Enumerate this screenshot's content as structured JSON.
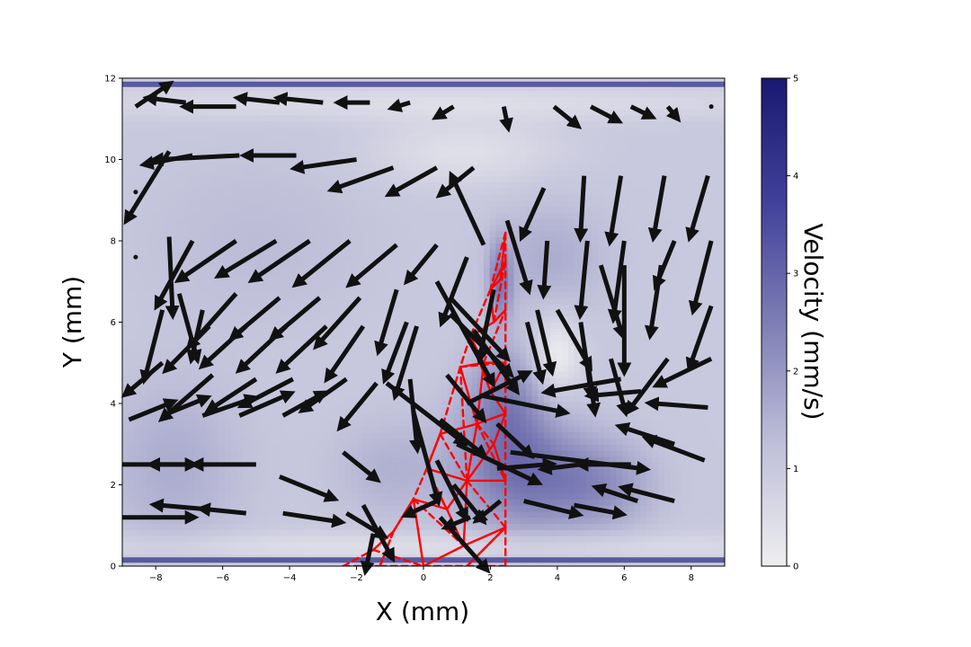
{
  "chart_data": {
    "type": "heatmap",
    "subtype": "velocity-field-with-quiver-overlay",
    "xlabel": "X (mm)",
    "ylabel": "Y (mm)",
    "xlim": [
      -9,
      9
    ],
    "ylim": [
      0,
      12
    ],
    "x_ticks": [
      -8,
      -6,
      -4,
      -2,
      0,
      2,
      4,
      6,
      8
    ],
    "y_ticks": [
      0,
      2,
      4,
      6,
      8,
      10,
      12
    ],
    "grid": false,
    "colorbar": {
      "label": "Velocity (mm/s)",
      "range": [
        0,
        5
      ],
      "ticks": [
        0,
        1,
        2,
        3,
        4,
        5
      ],
      "colormap": [
        "#eeeef0",
        "#bfbfd9",
        "#7d7db5",
        "#40409a",
        "#191970"
      ],
      "position": "right"
    },
    "wall_color": "#5a5aa0",
    "walls_y": [
      0.15,
      11.85
    ],
    "background_field": {
      "base_value": 1.0,
      "blobs": [
        {
          "x": 2.8,
          "y": 2.4,
          "amplitude": 1.6,
          "sx": 1.3,
          "sy": 1.1
        },
        {
          "x": 5.2,
          "y": 2.0,
          "amplitude": 1.1,
          "sx": 1.2,
          "sy": 0.8
        },
        {
          "x": 2.4,
          "y": 4.2,
          "amplitude": 1.1,
          "sx": 0.8,
          "sy": 0.9
        },
        {
          "x": 2.3,
          "y": 7.0,
          "amplitude": 1.5,
          "sx": 0.25,
          "sy": 0.7
        },
        {
          "x": 3.8,
          "y": 7.6,
          "amplitude": 0.6,
          "sx": 1.2,
          "sy": 1.0
        },
        {
          "x": -1.0,
          "y": 2.4,
          "amplitude": 0.5,
          "sx": 1.2,
          "sy": 0.9
        },
        {
          "x": -7.5,
          "y": 2.5,
          "amplitude": 0.6,
          "sx": 1.5,
          "sy": 1.5
        },
        {
          "x": -5.0,
          "y": 8.0,
          "amplitude": 0.3,
          "sx": 2.5,
          "sy": 1.5
        },
        {
          "x": 4.0,
          "y": 5.2,
          "amplitude": -1.0,
          "sx": 0.5,
          "sy": 0.7
        },
        {
          "x": 1.2,
          "y": 10.2,
          "amplitude": -0.6,
          "sx": 2.0,
          "sy": 0.6
        },
        {
          "x": 0,
          "y": 11.4,
          "amplitude": -0.5,
          "sx": 9.0,
          "sy": 0.3
        },
        {
          "x": 0,
          "y": 0.5,
          "amplitude": -0.6,
          "sx": 9.0,
          "sy": 0.25
        }
      ]
    },
    "quiver": [
      {
        "x": -8.6,
        "y": 11.3,
        "u": 0.9,
        "v": 0.5
      },
      {
        "x": -7.1,
        "y": 11.4,
        "u": -1.0,
        "v": 0.1
      },
      {
        "x": -5.6,
        "y": 11.3,
        "u": -1.4,
        "v": 0
      },
      {
        "x": -4.3,
        "y": 11.4,
        "u": -1.1,
        "v": 0.1
      },
      {
        "x": -3.0,
        "y": 11.4,
        "u": -1.2,
        "v": 0.1
      },
      {
        "x": -1.6,
        "y": 11.4,
        "u": -0.8,
        "v": 0
      },
      {
        "x": -0.4,
        "y": 11.4,
        "u": -0.4,
        "v": -0.1
      },
      {
        "x": 0.9,
        "y": 11.3,
        "u": -0.4,
        "v": -0.2
      },
      {
        "x": 2.4,
        "y": 11.3,
        "u": 0.1,
        "v": -0.4
      },
      {
        "x": 3.9,
        "y": 11.3,
        "u": 0.6,
        "v": -0.4
      },
      {
        "x": 5.0,
        "y": 11.3,
        "u": 0.7,
        "v": -0.3
      },
      {
        "x": 6.2,
        "y": 11.3,
        "u": 0.5,
        "v": -0.2
      },
      {
        "x": 7.3,
        "y": 11.3,
        "u": 0.2,
        "v": -0.2
      },
      {
        "x": 8.6,
        "y": 11.3,
        "u": 0,
        "v": 0
      },
      {
        "x": -7.6,
        "y": 10.2,
        "u": -1.2,
        "v": -1.6
      },
      {
        "x": -6.9,
        "y": 10.1,
        "u": -1.3,
        "v": -0.2
      },
      {
        "x": -5.5,
        "y": 10.1,
        "u": -2.4,
        "v": -0.1
      },
      {
        "x": -3.8,
        "y": 10.1,
        "u": -1.4,
        "v": 0
      },
      {
        "x": -2.0,
        "y": 10.0,
        "u": -1.7,
        "v": -0.2
      },
      {
        "x": -0.9,
        "y": 9.8,
        "u": -1.7,
        "v": -0.5
      },
      {
        "x": 0.4,
        "y": 9.8,
        "u": -1.3,
        "v": -0.6
      },
      {
        "x": 1.5,
        "y": 9.8,
        "u": -0.9,
        "v": -0.6
      },
      {
        "x": -7.6,
        "y": 8.1,
        "u": 0.1,
        "v": -1.8
      },
      {
        "x": -6.9,
        "y": 8.0,
        "u": -1.0,
        "v": -1.5
      },
      {
        "x": -5.6,
        "y": 8.0,
        "u": -1.6,
        "v": -0.9
      },
      {
        "x": -4.4,
        "y": 8.0,
        "u": -1.6,
        "v": -0.8
      },
      {
        "x": -3.4,
        "y": 8.0,
        "u": -1.6,
        "v": -0.9
      },
      {
        "x": -2.2,
        "y": 8.0,
        "u": -1.5,
        "v": -1.0
      },
      {
        "x": -0.8,
        "y": 7.9,
        "u": -1.3,
        "v": -0.9
      },
      {
        "x": 0.4,
        "y": 7.9,
        "u": -0.8,
        "v": -0.8
      },
      {
        "x": 1.8,
        "y": 7.9,
        "u": -0.9,
        "v": 1.6
      },
      {
        "x": 2.5,
        "y": 8.5,
        "u": 0.6,
        "v": -1.6
      },
      {
        "x": 3.6,
        "y": 9.3,
        "u": -0.6,
        "v": -1.1
      },
      {
        "x": 4.8,
        "y": 9.6,
        "u": -0.1,
        "v": -1.4
      },
      {
        "x": 5.9,
        "y": 9.6,
        "u": -0.3,
        "v": -1.5
      },
      {
        "x": 7.2,
        "y": 9.6,
        "u": -0.3,
        "v": -1.4
      },
      {
        "x": 8.5,
        "y": 9.6,
        "u": -0.5,
        "v": -1.4
      },
      {
        "x": -8.6,
        "y": 9.2,
        "u": 0,
        "v": 0
      },
      {
        "x": -7.3,
        "y": 6.7,
        "u": 0.5,
        "v": -1.5
      },
      {
        "x": -6.6,
        "y": 6.3,
        "u": -0.3,
        "v": -1.1
      },
      {
        "x": -5.6,
        "y": 6.7,
        "u": -1.3,
        "v": -1.2
      },
      {
        "x": -4.3,
        "y": 6.6,
        "u": -1.3,
        "v": -0.9
      },
      {
        "x": -3.1,
        "y": 6.6,
        "u": -1.3,
        "v": -0.9
      },
      {
        "x": -1.9,
        "y": 6.6,
        "u": -1.2,
        "v": -1.1
      },
      {
        "x": -0.8,
        "y": 6.8,
        "u": -0.5,
        "v": -1.4
      },
      {
        "x": 1.3,
        "y": 7.6,
        "u": -0.7,
        "v": -1.5
      },
      {
        "x": 3.7,
        "y": 8.0,
        "u": -0.1,
        "v": -1.2
      },
      {
        "x": 4.9,
        "y": 8.0,
        "u": -0.2,
        "v": -1.7
      },
      {
        "x": 6.0,
        "y": 8.0,
        "u": -0.3,
        "v": -1.8
      },
      {
        "x": 7.5,
        "y": 8.0,
        "u": -0.5,
        "v": -1.0
      },
      {
        "x": 8.6,
        "y": 8.0,
        "u": -0.5,
        "v": -1.6
      },
      {
        "x": -8.6,
        "y": 7.6,
        "u": 0,
        "v": 0
      },
      {
        "x": -7.8,
        "y": 6.3,
        "u": -0.5,
        "v": -1.6
      },
      {
        "x": -6.4,
        "y": 5.9,
        "u": -1.2,
        "v": -1.0
      },
      {
        "x": -5.3,
        "y": 5.9,
        "u": -1.2,
        "v": -0.9
      },
      {
        "x": -4.1,
        "y": 5.9,
        "u": -1.3,
        "v": -1.0
      },
      {
        "x": -2.9,
        "y": 5.9,
        "u": -1.3,
        "v": -1.0
      },
      {
        "x": -1.8,
        "y": 5.9,
        "u": -1.0,
        "v": -1.2
      },
      {
        "x": -0.5,
        "y": 6.0,
        "u": -0.6,
        "v": -1.3
      },
      {
        "x": 0.4,
        "y": 7.0,
        "u": 1.6,
        "v": -2.4
      },
      {
        "x": 0.8,
        "y": 6.2,
        "u": 1.7,
        "v": -1.4
      },
      {
        "x": 2.1,
        "y": 6.8,
        "u": -0.4,
        "v": -1.6
      },
      {
        "x": 3.4,
        "y": 6.3,
        "u": 0.4,
        "v": -1.4
      },
      {
        "x": 4.0,
        "y": 6.3,
        "u": 0.9,
        "v": -1.3
      },
      {
        "x": 4.7,
        "y": 6.0,
        "u": 0.3,
        "v": -1.7
      },
      {
        "x": 5.3,
        "y": 7.4,
        "u": 0.6,
        "v": -1.6
      },
      {
        "x": 6.0,
        "y": 7.4,
        "u": 0,
        "v": -2.5
      },
      {
        "x": 7.1,
        "y": 7.4,
        "u": -0.3,
        "v": -1.6
      },
      {
        "x": 8.6,
        "y": 6.4,
        "u": -0.6,
        "v": -1.4
      },
      {
        "x": -7.8,
        "y": 5.0,
        "u": -1.0,
        "v": -0.7
      },
      {
        "x": -6.3,
        "y": 4.7,
        "u": -1.4,
        "v": -1.0
      },
      {
        "x": -5.0,
        "y": 4.6,
        "u": -1.3,
        "v": -0.7
      },
      {
        "x": -3.9,
        "y": 4.6,
        "u": -1.4,
        "v": -0.6
      },
      {
        "x": -2.3,
        "y": 4.6,
        "u": -1.2,
        "v": -0.7
      },
      {
        "x": -1.4,
        "y": 4.5,
        "u": -1.0,
        "v": -1.0
      },
      {
        "x": -0.2,
        "y": 5.9,
        "u": -0.6,
        "v": -1.6
      },
      {
        "x": 0.8,
        "y": 6.6,
        "u": 1.6,
        "v": -1.4
      },
      {
        "x": 1.5,
        "y": 5.8,
        "u": 1.2,
        "v": -1.4
      },
      {
        "x": 3.1,
        "y": 6.0,
        "u": 0.4,
        "v": -1.3
      },
      {
        "x": 4.9,
        "y": 5.1,
        "u": 0.2,
        "v": -1.2
      },
      {
        "x": 5.6,
        "y": 5.1,
        "u": 0.4,
        "v": -1.2
      },
      {
        "x": 7.3,
        "y": 5.1,
        "u": -1.1,
        "v": -1.2
      },
      {
        "x": 8.6,
        "y": 5.1,
        "u": -1.5,
        "v": -0.6
      },
      {
        "x": -8.8,
        "y": 3.6,
        "u": 1.2,
        "v": 0.4
      },
      {
        "x": -7.8,
        "y": 3.7,
        "u": 1.2,
        "v": 0.4
      },
      {
        "x": -6.6,
        "y": 3.7,
        "u": 1.4,
        "v": 0.4
      },
      {
        "x": -5.5,
        "y": 3.7,
        "u": 1.4,
        "v": 0.5
      },
      {
        "x": -4.2,
        "y": 3.7,
        "u": 1.1,
        "v": 0.5
      },
      {
        "x": -1.1,
        "y": 4.5,
        "u": 2.2,
        "v": -1.4
      },
      {
        "x": -0.4,
        "y": 4.6,
        "u": 0.2,
        "v": -1.6
      },
      {
        "x": 0.7,
        "y": 4.7,
        "u": 1.0,
        "v": -1.0
      },
      {
        "x": 0.5,
        "y": 3.6,
        "u": 1.2,
        "v": -0.8
      },
      {
        "x": 1.3,
        "y": 4.0,
        "u": 1.7,
        "v": 0.7
      },
      {
        "x": 1.7,
        "y": 4.2,
        "u": 2.4,
        "v": -0.4
      },
      {
        "x": 2.2,
        "y": 3.5,
        "u": 0.9,
        "v": -0.7
      },
      {
        "x": 5.9,
        "y": 4.6,
        "u": -2.1,
        "v": -0.3
      },
      {
        "x": 6.5,
        "y": 4.3,
        "u": -1.4,
        "v": -0.1
      },
      {
        "x": 8.5,
        "y": 3.9,
        "u": -1.6,
        "v": 0.1
      },
      {
        "x": -9.0,
        "y": 2.5,
        "u": 2.0,
        "v": 0
      },
      {
        "x": -7.0,
        "y": 2.5,
        "u": -1.0,
        "v": 0
      },
      {
        "x": -5.0,
        "y": 2.5,
        "u": -1.7,
        "v": 0
      },
      {
        "x": -4.3,
        "y": 2.2,
        "u": 1.5,
        "v": -0.5
      },
      {
        "x": -2.4,
        "y": 2.8,
        "u": 0.9,
        "v": -0.6
      },
      {
        "x": -0.3,
        "y": 3.8,
        "u": 0.7,
        "v": -2.1
      },
      {
        "x": 0.4,
        "y": 2.6,
        "u": 0.8,
        "v": -1.3
      },
      {
        "x": 1.0,
        "y": 3.0,
        "u": 2.3,
        "v": -0.9
      },
      {
        "x": 2.2,
        "y": 2.4,
        "u": 1.5,
        "v": 0.1
      },
      {
        "x": 2.6,
        "y": 2.8,
        "u": 3.9,
        "v": -0.4
      },
      {
        "x": 4.7,
        "y": 2.5,
        "u": -1.0,
        "v": -0.1
      },
      {
        "x": 6.2,
        "y": 2.5,
        "u": -1.4,
        "v": 0
      },
      {
        "x": 7.5,
        "y": 3.0,
        "u": -1.5,
        "v": 0.4
      },
      {
        "x": 8.4,
        "y": 2.6,
        "u": -1.6,
        "v": 0.5
      },
      {
        "x": -9.0,
        "y": 1.2,
        "u": 2.0,
        "v": 0
      },
      {
        "x": -6.5,
        "y": 1.4,
        "u": -1.4,
        "v": 0.1
      },
      {
        "x": -5.3,
        "y": 1.3,
        "u": -1.2,
        "v": 0.1
      },
      {
        "x": -4.2,
        "y": 1.3,
        "u": 1.6,
        "v": -0.2
      },
      {
        "x": -2.3,
        "y": 1.3,
        "u": 1.0,
        "v": -0.5
      },
      {
        "x": -1.8,
        "y": 1.5,
        "u": 0.8,
        "v": -1.2
      },
      {
        "x": -1.5,
        "y": 0.8,
        "u": -0.2,
        "v": -0.8
      },
      {
        "x": 0.9,
        "y": 2.0,
        "u": 0.8,
        "v": -0.8
      },
      {
        "x": 1.4,
        "y": 1.2,
        "u": -0.6,
        "v": -0.2
      },
      {
        "x": 2.3,
        "y": 1.6,
        "u": -0.6,
        "v": -0.4
      },
      {
        "x": 3.0,
        "y": 1.6,
        "u": 1.5,
        "v": -0.3
      },
      {
        "x": 4.5,
        "y": 1.5,
        "u": 1.3,
        "v": -0.2
      },
      {
        "x": 6.4,
        "y": 1.6,
        "u": -1.1,
        "v": 0.3
      },
      {
        "x": 7.5,
        "y": 1.6,
        "u": -1.4,
        "v": 0.3
      },
      {
        "x": 0.4,
        "y": 1.6,
        "u": -0.8,
        "v": -0.3
      },
      {
        "x": 0.5,
        "y": 1.2,
        "u": 1.3,
        "v": -1.2
      }
    ],
    "triangulation": {
      "color": "#ff0000",
      "nodes": [
        [
          -2.4,
          0
        ],
        [
          -1.3,
          0
        ],
        [
          0,
          0
        ],
        [
          1.3,
          0
        ],
        [
          2.45,
          0
        ],
        [
          -1.5,
          0.4
        ],
        [
          -0.9,
          0.85
        ],
        [
          -0.3,
          1.65
        ],
        [
          0.7,
          1.4
        ],
        [
          1.2,
          0.5
        ],
        [
          2.45,
          0.95
        ],
        [
          0.1,
          2.4
        ],
        [
          1.3,
          2.1
        ],
        [
          2.45,
          2.1
        ],
        [
          0.5,
          3.25
        ],
        [
          1.6,
          3.5
        ],
        [
          2.45,
          3.75
        ],
        [
          1.1,
          4.9
        ],
        [
          1.8,
          5.0
        ],
        [
          2.45,
          5.0
        ],
        [
          1.4,
          5.65
        ],
        [
          2.1,
          6.0
        ],
        [
          2.45,
          6.3
        ],
        [
          2.0,
          6.8
        ],
        [
          2.45,
          7.5
        ],
        [
          2.3,
          7.05
        ],
        [
          2.45,
          8.2
        ],
        [
          2.0,
          4.3
        ],
        [
          2.1,
          3.0
        ],
        [
          0.3,
          2.0
        ]
      ],
      "solid_edges": [
        [
          2,
          7
        ],
        [
          7,
          8
        ],
        [
          8,
          9
        ],
        [
          9,
          10
        ],
        [
          9,
          12
        ],
        [
          8,
          12
        ],
        [
          11,
          12
        ],
        [
          12,
          13
        ],
        [
          12,
          15
        ],
        [
          11,
          14
        ],
        [
          14,
          15
        ],
        [
          15,
          16
        ],
        [
          15,
          18
        ],
        [
          17,
          15
        ],
        [
          17,
          18
        ],
        [
          18,
          19
        ],
        [
          18,
          20
        ],
        [
          20,
          21
        ],
        [
          21,
          22
        ],
        [
          21,
          23
        ],
        [
          23,
          24
        ],
        [
          23,
          25
        ],
        [
          25,
          26
        ],
        [
          20,
          27
        ],
        [
          27,
          16
        ],
        [
          28,
          12
        ],
        [
          28,
          16
        ],
        [
          6,
          7
        ],
        [
          5,
          6
        ],
        [
          9,
          2
        ],
        [
          10,
          3
        ],
        [
          13,
          28
        ],
        [
          27,
          19
        ],
        [
          11,
          29
        ],
        [
          29,
          8
        ]
      ],
      "dashed_edges": [
        [
          0,
          5
        ],
        [
          0,
          1
        ],
        [
          1,
          2
        ],
        [
          2,
          3
        ],
        [
          3,
          4
        ],
        [
          4,
          10
        ],
        [
          10,
          13
        ],
        [
          13,
          16
        ],
        [
          16,
          19
        ],
        [
          19,
          22
        ],
        [
          22,
          24
        ],
        [
          24,
          26
        ],
        [
          26,
          23
        ],
        [
          23,
          20
        ],
        [
          20,
          17
        ],
        [
          17,
          14
        ],
        [
          14,
          11
        ],
        [
          11,
          7
        ],
        [
          7,
          6
        ],
        [
          6,
          1
        ],
        [
          5,
          2
        ],
        [
          7,
          9
        ],
        [
          12,
          10
        ],
        [
          14,
          12
        ],
        [
          15,
          13
        ],
        [
          17,
          19
        ],
        [
          18,
          22
        ],
        [
          21,
          24
        ],
        [
          25,
          24
        ],
        [
          1,
          6
        ],
        [
          3,
          10
        ],
        [
          11,
          8
        ],
        [
          15,
          28
        ],
        [
          12,
          17
        ]
      ]
    }
  }
}
